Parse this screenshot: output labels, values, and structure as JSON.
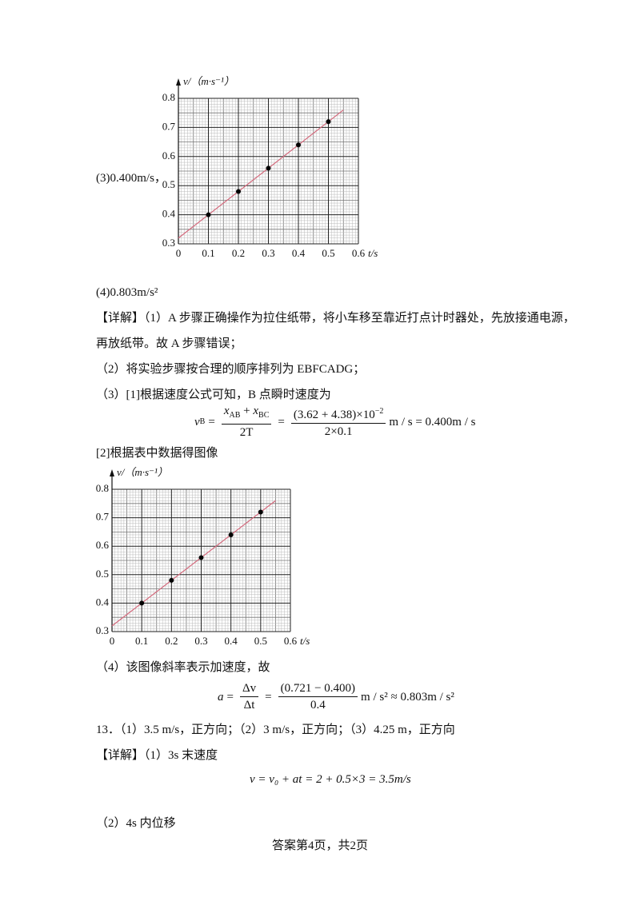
{
  "answer_3": "(3)0.400m/s，",
  "answer_4": "(4)0.803m/s²",
  "detail_1_line_1": "【详解】（1）A 步骤正确操作为拉住纸带，将小车移至靠近打点计时器处，先放接通电源，",
  "detail_1_line_2": "再放纸带。故 A 步骤错误；",
  "detail_2": "（2）将实验步骤按合理的顺序排列为 EBFCADG；",
  "detail_3": "（3）[1]根据速度公式可知，B 点瞬时速度为",
  "formula_1": {
    "v": "v",
    "v_sub": "B",
    "eq1": "=",
    "num1_a": "x",
    "num1_a_sub": "AB",
    "plus": "+",
    "num1_b": "x",
    "num1_b_sub": "BC",
    "den1": "2T",
    "eq2": "=",
    "num2": "(3.62 + 4.38)×10",
    "num2_exp": "−2",
    "den2": "2×0.1",
    "tail": "m / s = 0.400m / s"
  },
  "detail_3_2": "[2]根据表中数据得图像",
  "detail_4": "（4）该图像斜率表示加速度，故",
  "formula_2": {
    "lhs": "a",
    "eq1": "=",
    "num1": "Δv",
    "den1": "Δt",
    "eq2": "=",
    "num2": "(0.721 − 0.400)",
    "den2": "0.4",
    "tail": "m / s² ≈ 0.803m / s²"
  },
  "q13": "13．（1）3.5 m/s，正方向；（2）3 m/s，正方向；（3）4.25 m，正方向",
  "q13_detail_1": "【详解】（1）3s 末速度",
  "formula_3": "v = v₀ + at = 2 + 0.5×3 = 3.5m/s",
  "q13_detail_2": "（2）4s 内位移",
  "footer": "答案第4页，共2页",
  "charts": [
    {
      "y_label": "v/（m·s⁻¹）",
      "x_label": "t/s",
      "xlim": [
        0,
        0.6
      ],
      "ylim": [
        0.3,
        0.8
      ],
      "xticks": [
        0,
        0.1,
        0.2,
        0.3,
        0.4,
        0.5,
        0.6
      ],
      "yticks": [
        0.3,
        0.4,
        0.5,
        0.6,
        0.7,
        0.8
      ],
      "points": {
        "x": [
          0.1,
          0.2,
          0.3,
          0.4,
          0.5
        ],
        "y": [
          0.4,
          0.48,
          0.56,
          0.64,
          0.72
        ]
      },
      "fit_line": {
        "x": [
          0,
          0.55
        ],
        "y": [
          0.32,
          0.76
        ]
      },
      "line_color": "#d4697c"
    },
    {
      "y_label": "v/（m·s⁻¹）",
      "x_label": "t/s",
      "xlim": [
        0,
        0.6
      ],
      "ylim": [
        0.3,
        0.8
      ],
      "xticks": [
        0,
        0.1,
        0.2,
        0.3,
        0.4,
        0.5,
        0.6
      ],
      "yticks": [
        0.3,
        0.4,
        0.5,
        0.6,
        0.7,
        0.8
      ],
      "points": {
        "x": [
          0.1,
          0.2,
          0.3,
          0.4,
          0.5
        ],
        "y": [
          0.4,
          0.48,
          0.56,
          0.64,
          0.72
        ]
      },
      "fit_line": {
        "x": [
          0,
          0.55
        ],
        "y": [
          0.32,
          0.76
        ]
      },
      "line_color": "#d4697c"
    }
  ]
}
